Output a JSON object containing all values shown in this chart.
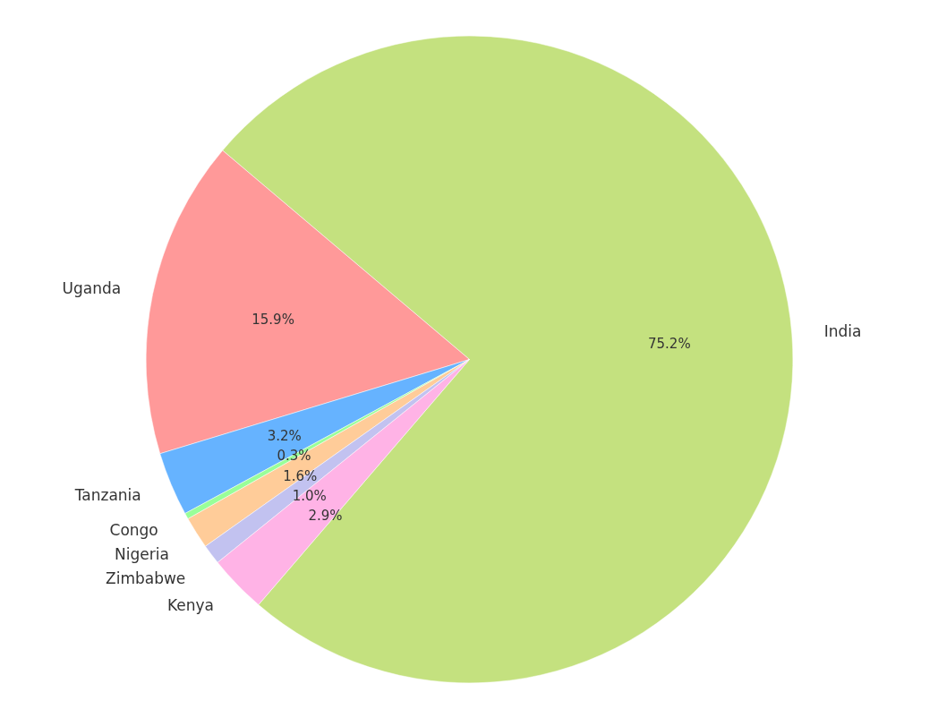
{
  "chart_data": {
    "type": "pie",
    "categories": [
      "India",
      "Uganda",
      "Tanzania",
      "Congo",
      "Nigeria",
      "Zimbabwe",
      "Kenya"
    ],
    "values": [
      75.2,
      15.9,
      3.2,
      0.3,
      1.6,
      1.0,
      2.9
    ],
    "colors": [
      "#c4e17f",
      "#ff9999",
      "#66b3ff",
      "#99ff99",
      "#ffcc99",
      "#c2c2f0",
      "#ffb3e6"
    ],
    "value_labels": [
      "75.2%",
      "15.9%",
      "3.2%",
      "0.3%",
      "1.6%",
      "1.0%",
      "2.9%"
    ]
  }
}
